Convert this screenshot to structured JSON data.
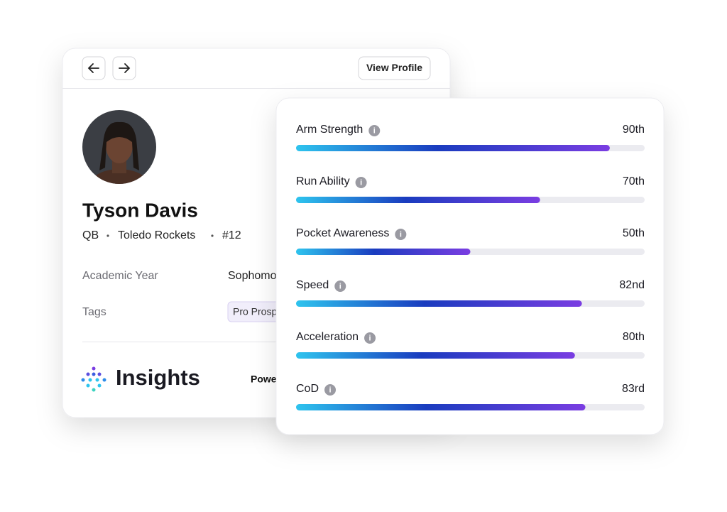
{
  "nav": {
    "button": "View Profile"
  },
  "profile": {
    "name": "Tyson Davis",
    "position": "QB",
    "team": "Toledo Rockets",
    "number": "#12",
    "fields": [
      {
        "label": "Academic Year",
        "value": "Sophomore"
      },
      {
        "label": "Tags",
        "value": "Pro Prospect"
      }
    ]
  },
  "insights": {
    "title": "Insights",
    "powered_by": "Powered by"
  },
  "metrics": {
    "xlim": [
      0,
      100
    ],
    "items": [
      {
        "name": "Arm Strength",
        "value": 90,
        "label": "90th"
      },
      {
        "name": "Run Ability",
        "value": 70,
        "label": "70th"
      },
      {
        "name": "Pocket Awareness",
        "value": 50,
        "label": "50th"
      },
      {
        "name": "Speed",
        "value": 82,
        "label": "82nd"
      },
      {
        "name": "Acceleration",
        "value": 80,
        "label": "80th"
      },
      {
        "name": "CoD",
        "value": 83,
        "label": "83rd"
      }
    ]
  }
}
